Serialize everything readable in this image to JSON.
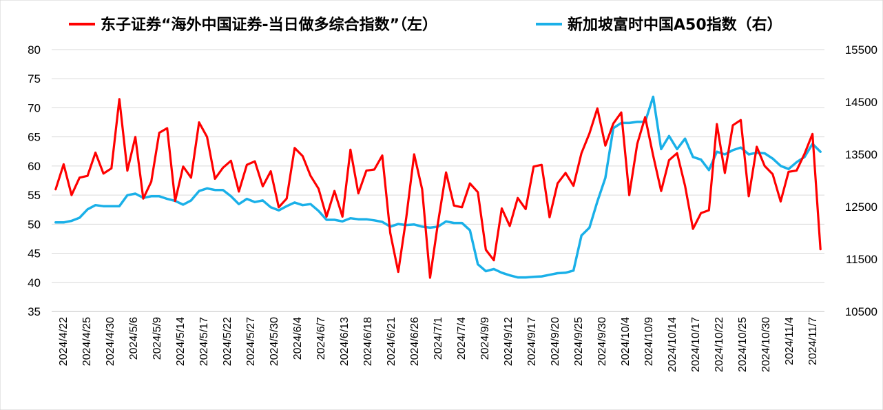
{
  "chart_data": {
    "type": "line",
    "title": "",
    "legend": [
      {
        "label": "东子证券“海外中国证券-当日做多综合指数”（左）",
        "color": "#ff0000"
      },
      {
        "label": "新加坡富时中国A50指数（右）",
        "color": "#1ab0e8"
      }
    ],
    "y_left": {
      "min": 35,
      "max": 80,
      "step": 5,
      "ticks": [
        "35",
        "40",
        "45",
        "50",
        "55",
        "60",
        "65",
        "70",
        "75",
        "80"
      ]
    },
    "y_right": {
      "min": 10500,
      "max": 15500,
      "ticks": [
        "10500",
        "11500",
        "12500",
        "13500",
        "14500",
        "15500"
      ]
    },
    "x_labels": [
      "2024/4/22",
      "2024/4/25",
      "2024/4/30",
      "2024/5/6",
      "2024/5/9",
      "2024/5/14",
      "2024/5/17",
      "2024/5/22",
      "2024/5/27",
      "2024/5/30",
      "2024/6/4",
      "2024/6/7",
      "2024/6/13",
      "2024/6/18",
      "2024/6/21",
      "2024/6/26",
      "2024/7/1",
      "2024/7/4",
      "2024/9/9",
      "2024/9/12",
      "2024/9/17",
      "2024/9/20",
      "2024/9/25",
      "2024/9/30",
      "2024/10/4",
      "2024/10/9",
      "2024/10/14",
      "2024/10/17",
      "2024/10/22",
      "2024/10/25",
      "2024/10/30",
      "2024/11/4",
      "2024/11/7"
    ],
    "grid": true,
    "legend_position": "top",
    "series": [
      {
        "name": "东子证券“海外中国证券-当日做多综合指数”（左）",
        "axis": "left",
        "color": "#ff0000",
        "values": [
          56,
          60.3,
          55,
          58,
          58.3,
          62.3,
          58.7,
          59.6,
          71.5,
          59.2,
          65,
          54.4,
          57.3,
          65.7,
          66.5,
          54,
          59.9,
          58,
          67.5,
          65,
          57.8,
          59.7,
          60.9,
          55.6,
          60.2,
          60.8,
          56.5,
          59.1,
          52.9,
          54.4,
          63.1,
          61.7,
          58.3,
          56.1,
          51.3,
          55.7,
          51.3,
          62.8,
          55.3,
          59.2,
          59.4,
          61.8,
          48.5,
          41.8,
          51,
          62,
          56,
          40.8,
          50.3,
          58.9,
          53.2,
          52.9,
          57,
          55.5,
          45.6,
          43.8,
          52.7,
          49.7,
          54.5,
          52.6,
          59.9,
          60.2,
          51.2,
          57,
          58.8,
          56.6,
          62.2,
          65.6,
          69.9,
          63.5,
          67.3,
          69.2,
          55,
          63.8,
          68.4,
          61.8,
          55.7,
          61,
          62.2,
          56.6,
          49.2,
          51.9,
          52.4,
          67.2,
          58.8,
          67,
          67.9,
          54.8,
          63.3,
          60,
          58.6,
          53.9,
          59,
          59.2,
          62.1,
          65.5,
          45.7
        ]
      },
      {
        "name": "新加坡富时中国A50指数（右）",
        "axis": "right",
        "color": "#1ab0e8",
        "values": [
          12200,
          12200,
          12230,
          12290,
          12450,
          12530,
          12510,
          12510,
          12510,
          12720,
          12750,
          12670,
          12700,
          12700,
          12650,
          12610,
          12540,
          12620,
          12800,
          12850,
          12820,
          12820,
          12700,
          12550,
          12650,
          12590,
          12620,
          12490,
          12430,
          12510,
          12580,
          12530,
          12550,
          12420,
          12250,
          12250,
          12220,
          12280,
          12260,
          12260,
          12240,
          12210,
          12120,
          12170,
          12150,
          12160,
          12120,
          12100,
          12120,
          12220,
          12190,
          12190,
          12050,
          11400,
          11270,
          11310,
          11240,
          11190,
          11150,
          11150,
          11160,
          11170,
          11200,
          11230,
          11240,
          11280,
          11950,
          12100,
          12600,
          13050,
          14000,
          14100,
          14100,
          14120,
          14120,
          14600,
          13600,
          13850,
          13600,
          13800,
          13450,
          13400,
          13200,
          13550,
          13500,
          13580,
          13630,
          13500,
          13530,
          13520,
          13420,
          13280,
          13220,
          13350,
          13450,
          13700,
          13550
        ]
      }
    ]
  }
}
